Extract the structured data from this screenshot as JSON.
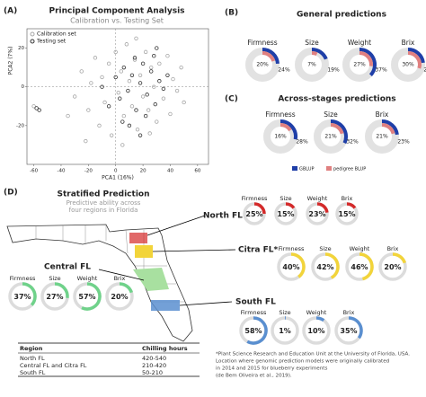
{
  "panel_labels": [
    "(A)",
    "(B)",
    "(C)",
    "(D)"
  ],
  "chart_data": [
    {
      "type": "scatter",
      "title": "Principal Component Analysis",
      "subtitle": "Calibration vs. Testing Set",
      "x_label": "PCA1 (16%)",
      "y_label": "PCA2 (7%)",
      "xlim": [
        -65,
        68
      ],
      "ylim": [
        -40,
        30
      ],
      "xticks": [
        -60,
        -40,
        -20,
        0,
        20,
        40,
        60
      ],
      "yticks": [
        -20,
        0,
        20
      ],
      "series": [
        {
          "name": "Calibration set",
          "color": "#a6a6a6",
          "x": [
            -30,
            -25,
            -20,
            -18,
            -15,
            -12,
            -10,
            -8,
            -5,
            -3,
            0,
            2,
            4,
            6,
            8,
            10,
            12,
            14,
            16,
            18,
            20,
            22,
            24,
            26,
            28,
            30,
            32,
            35,
            38,
            40,
            42,
            45,
            48,
            50,
            -35,
            -22,
            5,
            15,
            25,
            -60
          ],
          "values": [
            -5,
            8,
            -12,
            2,
            15,
            -20,
            5,
            -8,
            12,
            -25,
            18,
            -3,
            8,
            -15,
            22,
            3,
            -10,
            14,
            -22,
            6,
            -5,
            18,
            -12,
            10,
            0,
            -18,
            12,
            -6,
            16,
            -14,
            4,
            -2,
            10,
            -8,
            -15,
            -28,
            -30,
            25,
            -24,
            -10
          ]
        },
        {
          "name": "Testing set",
          "color": "#333333",
          "x": [
            -10,
            -5,
            0,
            3,
            6,
            9,
            12,
            15,
            18,
            20,
            23,
            26,
            29,
            32,
            35,
            38,
            10,
            14,
            22,
            28,
            -58,
            -56,
            5,
            30,
            18
          ],
          "values": [
            0,
            -10,
            5,
            -6,
            10,
            -2,
            6,
            -12,
            2,
            12,
            -4,
            8,
            -9,
            3,
            -1,
            6,
            -20,
            15,
            -15,
            16,
            -11,
            -12,
            -18,
            20,
            -25
          ]
        }
      ]
    },
    {
      "type": "donut",
      "title": "General predictions",
      "categories": [
        "Firmness",
        "Size",
        "Weight",
        "Brix"
      ],
      "series": [
        {
          "name": "GBLUP",
          "color": "#1f3fa8",
          "values": [
            24,
            19,
            37,
            23
          ],
          "value_labels": [
            "24%",
            "19%",
            "37%",
            "23%"
          ]
        },
        {
          "name": "pedigree BLUP",
          "color": "#e08080",
          "values": [
            20,
            7,
            27,
            30
          ],
          "value_labels": [
            "20%",
            "7%",
            "27%",
            "30%"
          ]
        }
      ]
    },
    {
      "type": "donut",
      "title": "Across-stages predictions",
      "categories": [
        "Firmness",
        "Size",
        "Brix"
      ],
      "legend": true,
      "series": [
        {
          "name": "GBLUP",
          "color": "#1f3fa8",
          "values": [
            28,
            32,
            23
          ],
          "value_labels": [
            "28%",
            "32%",
            "23%"
          ]
        },
        {
          "name": "pedigree BLUP",
          "color": "#e08080",
          "values": [
            16,
            21,
            21
          ],
          "value_labels": [
            "16%",
            "21%",
            "21%"
          ]
        }
      ]
    },
    {
      "type": "region-donut",
      "title": "Stratified Prediction",
      "subtitle": [
        "Predictive ability across",
        "four regions in Florida"
      ],
      "categories": [
        "Firmness",
        "Size",
        "Weight",
        "Brix"
      ],
      "series": [
        {
          "name": "North FL",
          "color": "#d42a2a",
          "values": [
            25,
            15,
            23,
            15
          ],
          "value_labels": [
            "25%",
            "15%",
            "23%",
            "15%"
          ]
        },
        {
          "name": "Citra FL*",
          "color": "#f2d43a",
          "values": [
            40,
            42,
            46,
            20
          ],
          "value_labels": [
            "40%",
            "42%",
            "46%",
            "20%"
          ]
        },
        {
          "name": "Central FL",
          "color": "#6fd28a",
          "values": [
            37,
            27,
            57,
            20
          ],
          "value_labels": [
            "37%",
            "27%",
            "57%",
            "20%"
          ]
        },
        {
          "name": "South FL",
          "color": "#5a8fd0",
          "values": [
            58,
            1,
            10,
            35
          ],
          "value_labels": [
            "58%",
            "1%",
            "10%",
            "35%"
          ]
        }
      ]
    }
  ],
  "table": {
    "header": [
      "Region",
      "Chilling hours"
    ],
    "rows": [
      [
        "North FL",
        "420-540"
      ],
      [
        "Central FL and Citra FL",
        "210-420"
      ],
      [
        "South FL",
        "50-210"
      ]
    ]
  },
  "footnote": [
    "*Plant Science Research and Education Unit at the University of Florida, USA.",
    "Location where genomic prediction models were originally calibrated",
    "in 2014 and 2015 for blueberry experiments",
    "(de Bem Oliveira et al., 2019)."
  ]
}
